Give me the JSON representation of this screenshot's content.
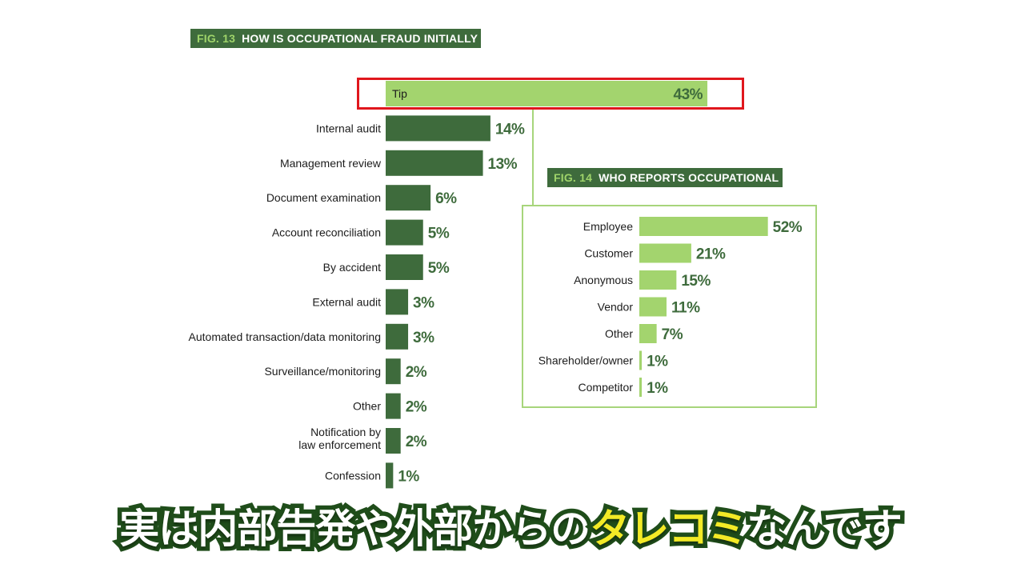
{
  "chart_data": [
    {
      "type": "bar",
      "orientation": "horizontal",
      "title_num": "FIG. 13",
      "title": "HOW IS OCCUPATIONAL FRAUD INITIALLY DETECTED?",
      "categories": [
        "Tip",
        "Internal audit",
        "Management review",
        "Document examination",
        "Account reconciliation",
        "By accident",
        "External audit",
        "Automated transaction/data monitoring",
        "Surveillance/monitoring",
        "Other",
        "Notification by law enforcement",
        "Confession"
      ],
      "values": [
        43,
        14,
        13,
        6,
        5,
        5,
        3,
        3,
        2,
        2,
        2,
        1
      ],
      "value_labels": [
        "43%",
        "14%",
        "13%",
        "6%",
        "5%",
        "5%",
        "3%",
        "3%",
        "2%",
        "2%",
        "2%",
        "1%"
      ],
      "unit": "%",
      "highlighted_category": "Tip",
      "colors": {
        "highlight": "#a3d46e",
        "bars": "#3e6b3c",
        "labels": "#3e6b3c",
        "frame": "#e0171d"
      }
    },
    {
      "type": "bar",
      "orientation": "horizontal",
      "title_num": "FIG. 14",
      "title": "WHO REPORTS OCCUPATIONAL FRAUD?",
      "categories": [
        "Employee",
        "Customer",
        "Anonymous",
        "Vendor",
        "Other",
        "Shareholder/owner",
        "Competitor"
      ],
      "values": [
        52,
        21,
        15,
        11,
        7,
        1,
        1
      ],
      "value_labels": [
        "52%",
        "21%",
        "15%",
        "11%",
        "7%",
        "1%",
        "1%"
      ],
      "unit": "%",
      "colors": {
        "bars": "#a3d46e",
        "labels": "#3e6b3c",
        "panel_border": "#a7d57b"
      }
    }
  ],
  "caption": {
    "main": "実は内部告発や外部からの",
    "highlight": "タレコミ",
    "tail": "なんです",
    "colors": {
      "text": "#ffffff",
      "highlight": "#f3ea26",
      "outline": "#1f4d1a"
    }
  }
}
